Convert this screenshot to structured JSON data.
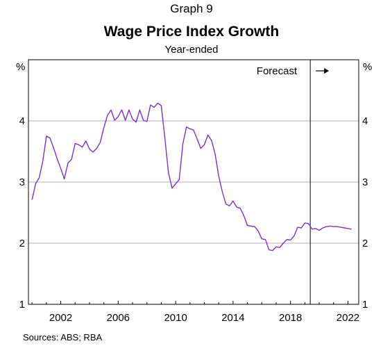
{
  "graph_number": "Graph 9",
  "source": "Sources:   ABS; RBA",
  "chart_data": {
    "type": "line",
    "title": "Wage Price Index Growth",
    "subtitle": "Year-ended",
    "y_unit_left": "%",
    "y_unit_right": "%",
    "ylim": [
      1,
      5
    ],
    "yticks": [
      1,
      2,
      3,
      4
    ],
    "xlim": [
      1999.75,
      2022.75
    ],
    "xticks": [
      2002,
      2006,
      2010,
      2014,
      2018,
      2022
    ],
    "grid": true,
    "annotation": {
      "label": "Forecast",
      "x": 2019.375
    },
    "series": [
      {
        "color": "#7b2fd6",
        "x": [
          2000.0,
          2000.25,
          2000.5,
          2000.75,
          2001.0,
          2001.25,
          2001.5,
          2001.75,
          2002.0,
          2002.25,
          2002.5,
          2002.75,
          2003.0,
          2003.25,
          2003.5,
          2003.75,
          2004.0,
          2004.25,
          2004.5,
          2004.75,
          2005.0,
          2005.25,
          2005.5,
          2005.75,
          2006.0,
          2006.25,
          2006.5,
          2006.75,
          2007.0,
          2007.25,
          2007.5,
          2007.75,
          2008.0,
          2008.25,
          2008.5,
          2008.75,
          2009.0,
          2009.25,
          2009.5,
          2009.75,
          2010.0,
          2010.25,
          2010.5,
          2010.75,
          2011.0,
          2011.25,
          2011.5,
          2011.75,
          2012.0,
          2012.25,
          2012.5,
          2012.75,
          2013.0,
          2013.25,
          2013.5,
          2013.75,
          2014.0,
          2014.25,
          2014.5,
          2014.75,
          2015.0,
          2015.25,
          2015.5,
          2015.75,
          2016.0,
          2016.25,
          2016.5,
          2016.75,
          2017.0,
          2017.25,
          2017.5,
          2017.75,
          2018.0,
          2018.25,
          2018.5,
          2018.75,
          2019.0,
          2019.25,
          2019.5,
          2019.75,
          2020.0,
          2020.25,
          2020.5,
          2020.75,
          2021.0,
          2021.25,
          2021.5,
          2021.75,
          2022.0,
          2022.25
        ],
        "values": [
          2.71,
          2.97,
          3.07,
          3.34,
          3.75,
          3.72,
          3.56,
          3.38,
          3.22,
          3.05,
          3.31,
          3.37,
          3.63,
          3.61,
          3.57,
          3.67,
          3.54,
          3.49,
          3.55,
          3.65,
          3.89,
          4.09,
          4.18,
          4.01,
          4.07,
          4.18,
          4.01,
          4.18,
          4.03,
          3.98,
          4.18,
          4.01,
          3.99,
          4.26,
          4.22,
          4.29,
          4.25,
          3.72,
          3.15,
          2.9,
          2.97,
          3.04,
          3.62,
          3.9,
          3.87,
          3.85,
          3.7,
          3.55,
          3.61,
          3.77,
          3.68,
          3.46,
          3.1,
          2.84,
          2.64,
          2.61,
          2.69,
          2.59,
          2.57,
          2.45,
          2.29,
          2.28,
          2.27,
          2.2,
          2.07,
          2.06,
          1.89,
          1.88,
          1.94,
          1.93,
          2.0,
          2.06,
          2.05,
          2.12,
          2.26,
          2.25,
          2.33,
          2.32,
          2.23,
          2.24,
          2.21,
          2.25,
          2.27,
          2.28,
          2.27,
          2.27,
          2.26,
          2.25,
          2.24,
          2.23
        ]
      }
    ]
  }
}
